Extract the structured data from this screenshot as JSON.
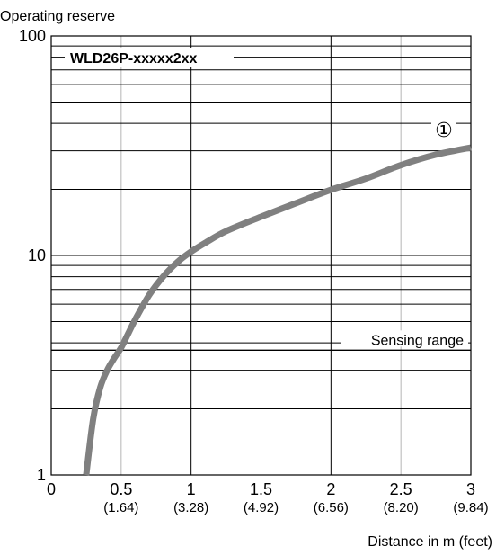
{
  "chart_data": {
    "type": "line",
    "title": "",
    "model_label": "WLD26P-xxxxx2xx",
    "ylabel": "Operating reserve",
    "xlabel": "Distance in m (feet)",
    "y_scale": "log",
    "ylim": [
      1,
      100
    ],
    "xlim": [
      0,
      3
    ],
    "grid": true,
    "y_ticks": [
      {
        "value": 1,
        "label": "1"
      },
      {
        "value": 10,
        "label": "10"
      },
      {
        "value": 100,
        "label": "100"
      }
    ],
    "x_ticks": [
      {
        "value": 0,
        "label": "0",
        "sublabel": ""
      },
      {
        "value": 0.5,
        "label": "0.5",
        "sublabel": "(1.64)"
      },
      {
        "value": 1,
        "label": "1",
        "sublabel": "(3.28)"
      },
      {
        "value": 1.5,
        "label": "1.5",
        "sublabel": "(4.92)"
      },
      {
        "value": 2,
        "label": "2",
        "sublabel": "(6.56)"
      },
      {
        "value": 2.5,
        "label": "2.5",
        "sublabel": "(8.20)"
      },
      {
        "value": 3,
        "label": "3",
        "sublabel": "(9.84)"
      }
    ],
    "sensing_range": {
      "label": "Sensing range",
      "value": 3.7
    },
    "series": [
      {
        "name": "①",
        "color": "#808080",
        "points": [
          [
            0.25,
            1.0
          ],
          [
            0.3,
            1.8
          ],
          [
            0.35,
            2.5
          ],
          [
            0.4,
            3.0
          ],
          [
            0.45,
            3.4
          ],
          [
            0.5,
            3.8
          ],
          [
            0.55,
            4.4
          ],
          [
            0.6,
            5.1
          ],
          [
            0.7,
            6.6
          ],
          [
            0.8,
            8.0
          ],
          [
            0.9,
            9.3
          ],
          [
            1.0,
            10.4
          ],
          [
            1.1,
            11.4
          ],
          [
            1.25,
            12.9
          ],
          [
            1.5,
            15.0
          ],
          [
            1.75,
            17.3
          ],
          [
            2.0,
            19.9
          ],
          [
            2.25,
            22.4
          ],
          [
            2.5,
            25.8
          ],
          [
            2.75,
            28.8
          ],
          [
            3.0,
            31.0
          ]
        ]
      }
    ]
  }
}
